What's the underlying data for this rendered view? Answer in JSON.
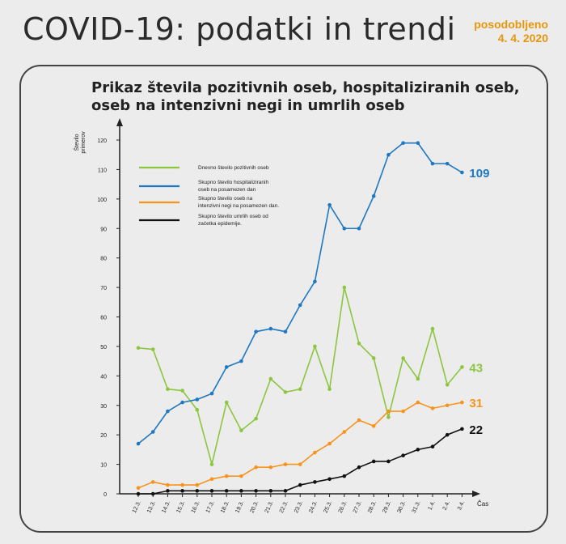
{
  "header": {
    "title": "COVID-19: podatki in trendi",
    "updated_label": "posodobljeno",
    "updated_date": "4. 4. 2020"
  },
  "colors": {
    "green": "#8cc63f",
    "blue": "#1f78c1",
    "orange": "#f7941d",
    "black": "#111111",
    "axis": "#222222"
  },
  "chart_data": {
    "type": "line",
    "title": "Prikaz števila pozitivnih oseb, hospitaliziranih oseb, oseb na intenzivni negi in umrlih oseb",
    "ylabel": "Število primerov",
    "xlabel": "Čas",
    "ylim": [
      0,
      120
    ],
    "yticks": [
      0,
      10,
      20,
      30,
      40,
      50,
      60,
      70,
      80,
      90,
      100,
      110,
      120
    ],
    "categories": [
      "12.3.",
      "13.3.",
      "14.3.",
      "15.3.",
      "16.3.",
      "17.3.",
      "18.3.",
      "19.3.",
      "20.3.",
      "21.3.",
      "22.3.",
      "23.3.",
      "24.3.",
      "25.3.",
      "26.3.",
      "27.3.",
      "28.3.",
      "29.3.",
      "30.3.",
      "31.3.",
      "1.4.",
      "2.4.",
      "3.4."
    ],
    "series": [
      {
        "name": "Dnevno število pozitivnih oseb",
        "color": "#8cc63f",
        "values": [
          49.5,
          49,
          35.5,
          35,
          28.5,
          10,
          31,
          21.5,
          25.5,
          39,
          34.5,
          35.5,
          50,
          35.5,
          70,
          51,
          46,
          26,
          46,
          39,
          56,
          37,
          43
        ],
        "end_label": "43"
      },
      {
        "name": "Skupno število hospitaliziranih oseb na posamezen dan",
        "color": "#1f78c1",
        "values": [
          17,
          21,
          28,
          31,
          32,
          34,
          43,
          45,
          55,
          56,
          55,
          64,
          72,
          98,
          90,
          90,
          101,
          115,
          119,
          119,
          112,
          112,
          109
        ],
        "end_label": "109"
      },
      {
        "name": "Skupno število oseb na intenzivni negi na posamezen dan.",
        "color": "#f7941d",
        "values": [
          2,
          4,
          3,
          3,
          3,
          5,
          6,
          6,
          9,
          9,
          10,
          10,
          14,
          17,
          21,
          25,
          23,
          28,
          28,
          31,
          29,
          30,
          31
        ],
        "end_label": "31"
      },
      {
        "name": "Skupno število umrlih oseb od začetka epidemije.",
        "color": "#111111",
        "values": [
          0,
          0,
          1,
          1,
          1,
          1,
          1,
          1,
          1,
          1,
          1,
          3,
          4,
          5,
          6,
          9,
          11,
          11,
          13,
          15,
          16,
          20,
          22
        ],
        "end_label": "22"
      }
    ]
  }
}
